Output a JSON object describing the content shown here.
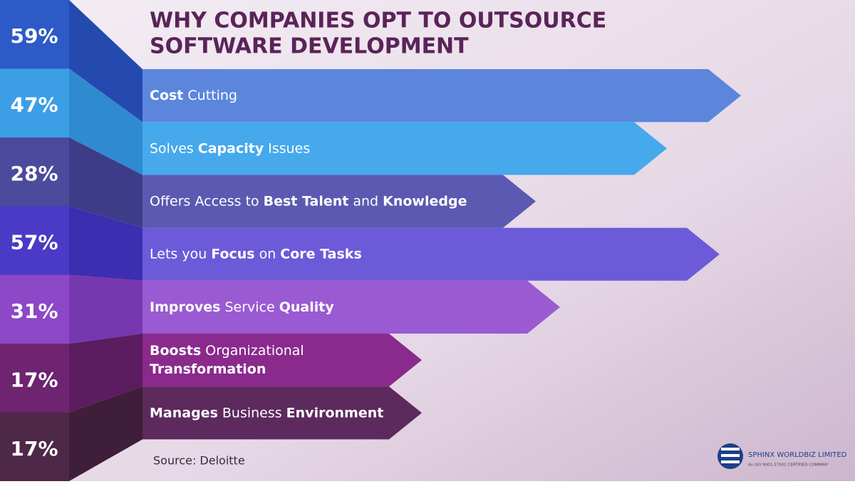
{
  "title": [
    "WHY COMPANIES OPT TO OUTSOURCE",
    "SOFTWARE DEVELOPMENT"
  ],
  "items": [
    {
      "percent": "59%",
      "lines": [
        [
          {
            "text": "Cost",
            "bold": true
          },
          {
            "text": "Cutting",
            "bold": false
          }
        ]
      ]
    },
    {
      "percent": "47%",
      "lines": [
        [
          {
            "text": "Solves",
            "bold": false
          },
          {
            "text": "Capacity",
            "bold": true
          },
          {
            "text": "Issues",
            "bold": false
          }
        ]
      ]
    },
    {
      "percent": "28%",
      "lines": [
        [
          {
            "text": "Offers Access to",
            "bold": false
          },
          {
            "text": "Best Talent",
            "bold": true
          },
          {
            "text": "and",
            "bold": false
          },
          {
            "text": "Knowledge",
            "bold": true
          }
        ]
      ]
    },
    {
      "percent": "57%",
      "lines": [
        [
          {
            "text": "Lets you",
            "bold": false
          },
          {
            "text": "Focus",
            "bold": true
          },
          {
            "text": "on",
            "bold": false
          },
          {
            "text": "Core Tasks",
            "bold": true
          }
        ]
      ]
    },
    {
      "percent": "31%",
      "lines": [
        [
          {
            "text": "Improves",
            "bold": true
          },
          {
            "text": "Service",
            "bold": false
          },
          {
            "text": "Quality",
            "bold": true
          }
        ]
      ]
    },
    {
      "percent": "17%",
      "lines": [
        [
          {
            "text": "Boosts",
            "bold": true
          },
          {
            "text": "Organizational",
            "bold": false
          }
        ],
        [
          {
            "text": "Transformation",
            "bold": true
          }
        ]
      ]
    },
    {
      "percent": "17%",
      "lines": [
        [
          {
            "text": "Manages",
            "bold": true
          },
          {
            "text": "Business",
            "bold": false
          },
          {
            "text": "Environment",
            "bold": true
          }
        ]
      ]
    }
  ],
  "source": "Source: Deloitte",
  "logo": {
    "name": "SPHINX WORLDBIZ LIMITED",
    "tagline": "An ISO 9001-27001 CERTIFIED COMPANY"
  }
}
